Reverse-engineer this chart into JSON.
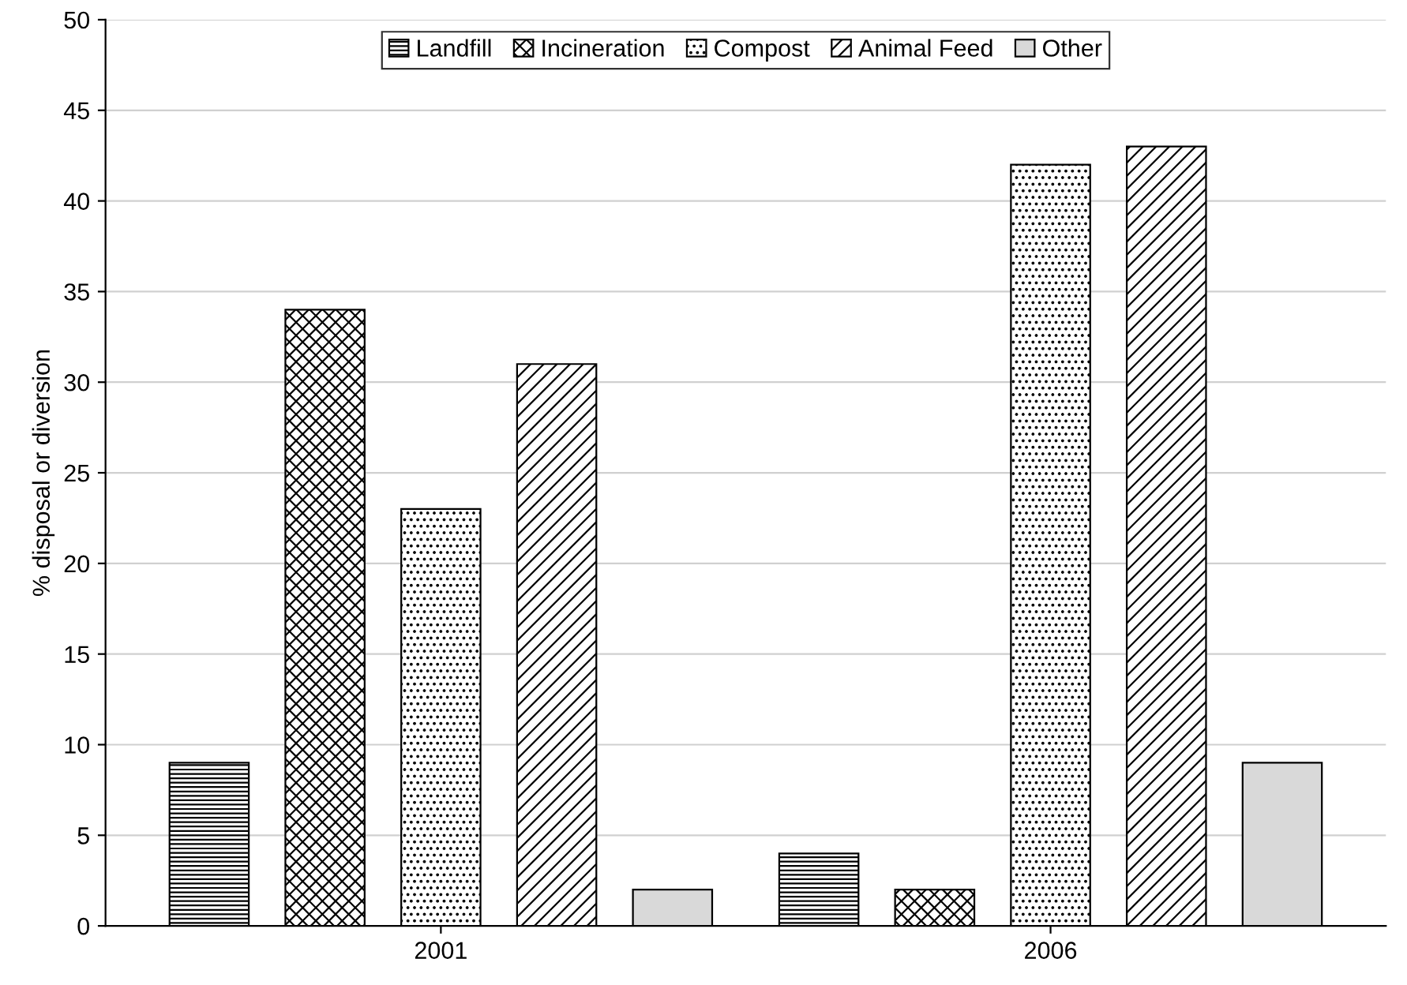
{
  "chart_data": {
    "type": "bar",
    "ylabel": "% disposal or diversion",
    "categories": [
      "2001",
      "2006"
    ],
    "series": [
      {
        "name": "Landfill",
        "color": "#000000",
        "values": [
          9,
          4
        ]
      },
      {
        "name": "Incineration",
        "color": "#000000",
        "values": [
          34,
          2
        ]
      },
      {
        "name": "Compost",
        "color": "#000000",
        "values": [
          23,
          42
        ]
      },
      {
        "name": "Animal Feed",
        "color": "#000000",
        "values": [
          31,
          43
        ]
      },
      {
        "name": "Other",
        "color": "#d9d9d9",
        "values": [
          2,
          9
        ]
      }
    ],
    "ylim": [
      0,
      50
    ],
    "yticks": [
      0,
      5,
      10,
      15,
      20,
      25,
      30,
      35,
      40,
      45,
      50
    ],
    "grid": "y",
    "legend": "top"
  }
}
